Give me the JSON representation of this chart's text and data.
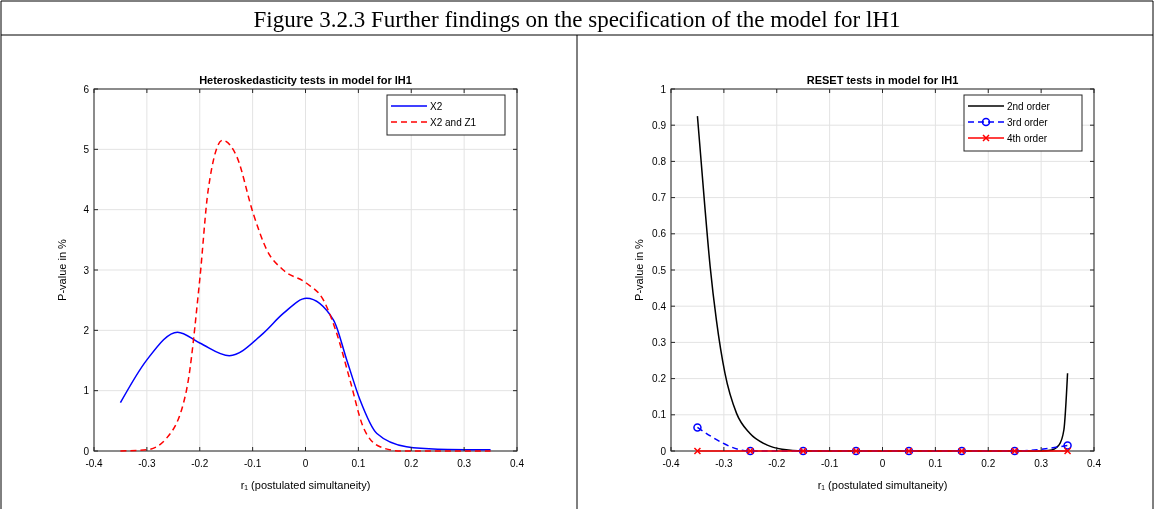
{
  "chart_data": [
    {
      "type": "line",
      "title": "Heteroskedasticity tests in model for lH1",
      "annotations": [
        "Figure 3.2.3 Further findings on the specification of the model for lH1"
      ],
      "xlabel": "r₁ (postulated simultaneity)",
      "ylabel": "P-value in %",
      "xlim": [
        -0.4,
        0.4
      ],
      "xticks": [
        -0.4,
        -0.3,
        -0.2,
        -0.1,
        0,
        0.1,
        0.2,
        0.3,
        0.4
      ],
      "ylim": [
        0,
        6
      ],
      "yticks": [
        0,
        1,
        2,
        3,
        4,
        5,
        6
      ],
      "grid": true,
      "legend": "top right",
      "series": [
        {
          "name": "X2",
          "color": "#0000ff",
          "line_style": "solid",
          "x": [
            -0.35,
            -0.3,
            -0.242,
            -0.2,
            -0.144,
            -0.08,
            -0.042,
            0.002,
            0.053,
            0.078,
            0.103,
            0.135,
            0.191,
            0.25,
            0.35
          ],
          "values": [
            0.8,
            1.51,
            1.97,
            1.79,
            1.58,
            1.95,
            2.28,
            2.53,
            2.17,
            1.51,
            0.85,
            0.29,
            0.07,
            0.03,
            0.02
          ]
        },
        {
          "name": "X2 and Z1",
          "color": "#ff0000",
          "line_style": "dashed",
          "x": [
            -0.35,
            -0.3,
            -0.263,
            -0.225,
            -0.2,
            -0.184,
            -0.157,
            -0.13,
            -0.099,
            -0.073,
            -0.042,
            0.002,
            0.034,
            0.059,
            0.084,
            0.109,
            0.141,
            0.18,
            0.35
          ],
          "values": [
            0,
            0.02,
            0.21,
            1.01,
            2.84,
            4.33,
            5.15,
            4.88,
            3.94,
            3.33,
            3.0,
            2.78,
            2.5,
            1.95,
            1.18,
            0.4,
            0.07,
            0,
            0
          ]
        }
      ]
    },
    {
      "type": "line",
      "title": "RESET tests in model for lH1",
      "xlabel": "r₁ (postulated simultaneity)",
      "ylabel": "P-value in %",
      "xlim": [
        -0.4,
        0.4
      ],
      "xticks": [
        -0.4,
        -0.3,
        -0.2,
        -0.1,
        0,
        0.1,
        0.2,
        0.3,
        0.4
      ],
      "ylim": [
        0,
        1
      ],
      "yticks": [
        0,
        0.1,
        0.2,
        0.3,
        0.4,
        0.5,
        0.6,
        0.7,
        0.8,
        0.9,
        1
      ],
      "grid": true,
      "legend": "top right",
      "series": [
        {
          "name": "2nd order",
          "color": "#000000",
          "line_style": "solid",
          "marker": "none",
          "x": [
            -0.35,
            -0.336,
            -0.326,
            -0.314,
            -0.298,
            -0.276,
            -0.251,
            -0.219,
            -0.19,
            -0.15,
            0.3,
            0.32,
            0.334,
            0.343,
            0.35
          ],
          "values": [
            0.925,
            0.675,
            0.51,
            0.36,
            0.215,
            0.104,
            0.049,
            0.017,
            0.005,
            0,
            0,
            0.003,
            0.017,
            0.058,
            0.215
          ]
        },
        {
          "name": "3rd order",
          "color": "#0000ff",
          "line_style": "dashed",
          "marker": "circle",
          "x": [
            -0.35,
            -0.25,
            -0.15,
            -0.05,
            0.05,
            0.15,
            0.25,
            0.35
          ],
          "values": [
            0.065,
            0,
            0,
            0,
            0,
            0,
            0,
            0.015
          ]
        },
        {
          "name": "4th order",
          "color": "#ff0000",
          "line_style": "solid",
          "marker": "cross",
          "x": [
            -0.35,
            -0.25,
            -0.15,
            -0.05,
            0.05,
            0.15,
            0.25,
            0.35
          ],
          "values": [
            0,
            0,
            0,
            0,
            0,
            0,
            0,
            0
          ]
        }
      ]
    }
  ]
}
